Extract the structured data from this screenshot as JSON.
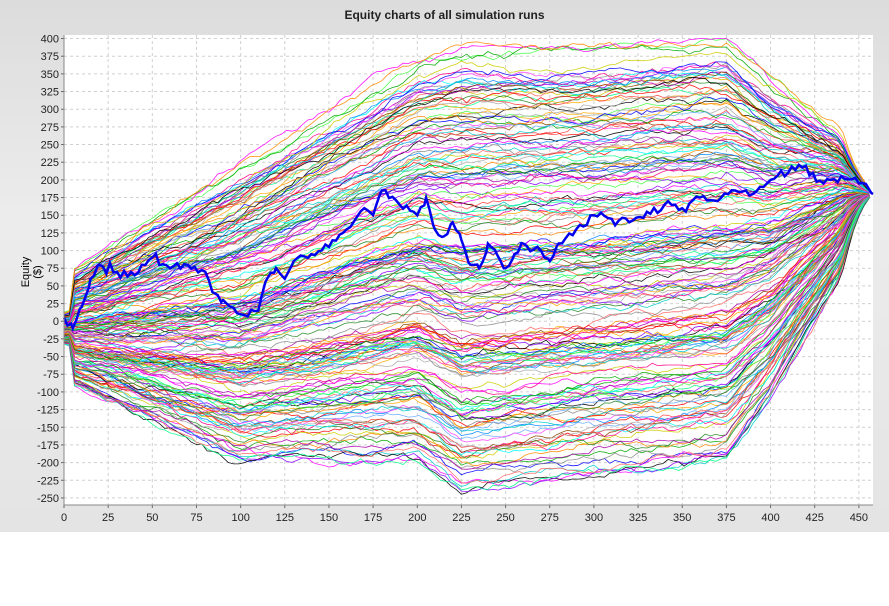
{
  "chart_data": {
    "type": "line",
    "title": "Equity charts of all simulation runs",
    "xlabel": "",
    "ylabel": "Equity ($)",
    "xlim": [
      0,
      458
    ],
    "ylim": [
      -260,
      405
    ],
    "xticks": [
      0,
      25,
      50,
      75,
      100,
      125,
      150,
      175,
      200,
      225,
      250,
      275,
      300,
      325,
      350,
      375,
      400,
      425,
      450
    ],
    "xtick_labels": [
      "0",
      "25",
      "50",
      "75",
      "100",
      "125",
      "150",
      "175",
      "200",
      "225",
      "250",
      "275",
      "300",
      "325",
      "350",
      "375",
      "400",
      "425",
      "450"
    ],
    "yticks": [
      400,
      375,
      350,
      325,
      300,
      275,
      250,
      225,
      200,
      175,
      150,
      125,
      100,
      75,
      50,
      25,
      0,
      -25,
      -50,
      -75,
      -100,
      -125,
      -150,
      -175,
      -200,
      -225,
      -250
    ],
    "ytick_labels": [
      "400",
      "375",
      "350",
      "325",
      "300",
      "275",
      "250",
      "225",
      "200",
      "175",
      "150",
      "125",
      "100",
      "75",
      "50",
      "25",
      "0",
      "-25",
      "-50",
      "-75",
      "-100",
      "-125",
      "-150",
      "-175",
      "-200",
      "-225",
      "-250"
    ],
    "grid": true,
    "legend": "none",
    "num_runs": 200,
    "highlight_series": {
      "color": "#0000ee",
      "x": [
        0,
        5,
        10,
        15,
        20,
        30,
        40,
        50,
        60,
        70,
        80,
        85,
        90,
        100,
        110,
        115,
        120,
        125,
        130,
        140,
        150,
        160,
        170,
        175,
        180,
        190,
        200,
        205,
        210,
        215,
        220,
        225,
        230,
        235,
        240,
        245,
        250,
        255,
        260,
        270,
        275,
        280,
        290,
        300,
        310,
        320,
        330,
        340,
        350,
        360,
        370,
        380,
        390,
        400,
        410,
        420,
        430,
        440,
        450,
        455,
        458
      ],
      "values": [
        5,
        -10,
        20,
        60,
        80,
        70,
        65,
        90,
        75,
        80,
        70,
        40,
        30,
        10,
        15,
        60,
        75,
        60,
        85,
        95,
        105,
        130,
        160,
        150,
        185,
        165,
        150,
        175,
        130,
        120,
        140,
        115,
        80,
        75,
        110,
        95,
        75,
        95,
        110,
        100,
        85,
        110,
        130,
        150,
        145,
        140,
        155,
        165,
        160,
        175,
        170,
        185,
        180,
        200,
        210,
        220,
        195,
        205,
        195,
        190,
        180
      ]
    },
    "runs_end_value": 180,
    "runs_envelope": {
      "x": [
        0,
        100,
        200,
        225,
        300,
        375,
        400,
        458
      ],
      "max": [
        60,
        210,
        355,
        370,
        370,
        385,
        330,
        230
      ],
      "min": [
        -80,
        -185,
        -180,
        -225,
        -200,
        -180,
        -100,
        150
      ]
    },
    "series_colors": [
      "#ff0000",
      "#00aa00",
      "#0000ff",
      "#ff00ff",
      "#00cccc",
      "#cccc00",
      "#000000",
      "#ff8800",
      "#8800ff",
      "#00ff88",
      "#ff0088",
      "#888888",
      "#ff6666",
      "#66aaff",
      "#228822",
      "#aa00aa",
      "#ffaa00",
      "#00ffff",
      "#884400",
      "#0088ff",
      "#ff44ff",
      "#44ff44",
      "#ff4444",
      "#aaaaaa"
    ]
  }
}
